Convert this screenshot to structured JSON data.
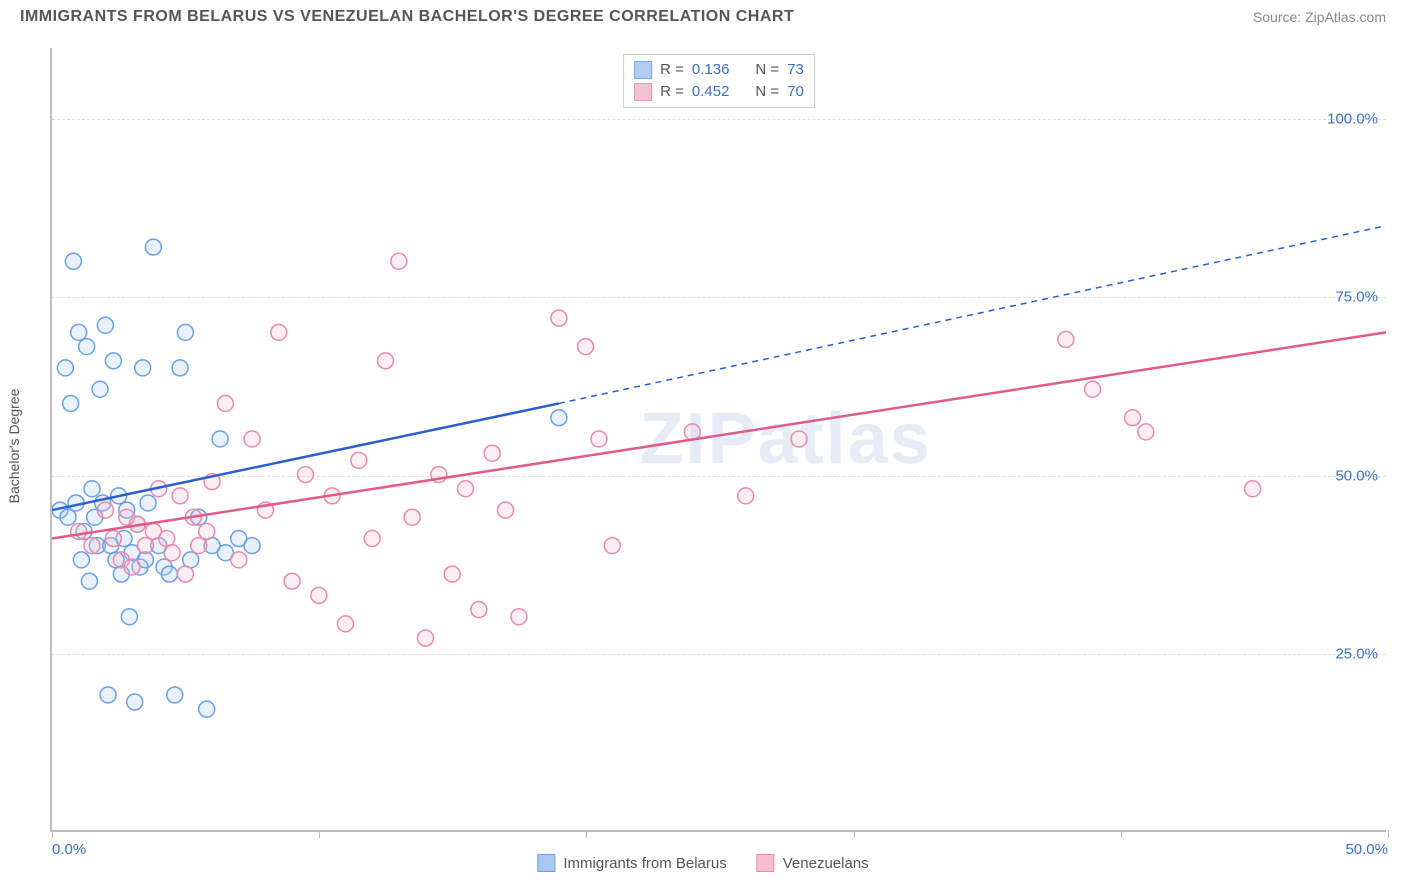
{
  "title": "IMMIGRANTS FROM BELARUS VS VENEZUELAN BACHELOR'S DEGREE CORRELATION CHART",
  "source": "Source: ZipAtlas.com",
  "watermark": "ZIPatlas",
  "y_axis_label": "Bachelor's Degree",
  "chart": {
    "type": "scatter",
    "xlim": [
      0,
      50
    ],
    "ylim": [
      0,
      110
    ],
    "x_ticks": [
      0,
      10,
      20,
      30,
      40,
      50
    ],
    "x_tick_labels": {
      "0": "0.0%",
      "50": "50.0%"
    },
    "y_gridlines": [
      25,
      50,
      75,
      100
    ],
    "y_tick_labels": {
      "25": "25.0%",
      "50": "50.0%",
      "75": "75.0%",
      "100": "100.0%"
    },
    "background_color": "#ffffff",
    "grid_color": "#dddddd",
    "axis_color": "#bdbdbd",
    "marker_radius": 8,
    "marker_stroke_width": 1.5,
    "marker_fill_opacity": 0.25,
    "series": [
      {
        "name": "Immigrants from Belarus",
        "color_stroke": "#6aa0e8",
        "color_fill": "#a9c8f0",
        "trend": {
          "x1": 0,
          "y1": 45,
          "x2": 19,
          "y2": 60,
          "dash_x2": 50,
          "dash_y2": 85,
          "color": "#2a5fd0",
          "width": 2.5
        },
        "stats": {
          "R": "0.136",
          "N": "73"
        },
        "points": [
          [
            0.3,
            45
          ],
          [
            0.5,
            65
          ],
          [
            0.6,
            44
          ],
          [
            0.7,
            60
          ],
          [
            0.8,
            80
          ],
          [
            0.9,
            46
          ],
          [
            1.0,
            70
          ],
          [
            1.1,
            38
          ],
          [
            1.2,
            42
          ],
          [
            1.3,
            68
          ],
          [
            1.4,
            35
          ],
          [
            1.5,
            48
          ],
          [
            1.6,
            44
          ],
          [
            1.7,
            40
          ],
          [
            1.8,
            62
          ],
          [
            1.9,
            46
          ],
          [
            2.0,
            71
          ],
          [
            2.1,
            19
          ],
          [
            2.2,
            40
          ],
          [
            2.3,
            66
          ],
          [
            2.4,
            38
          ],
          [
            2.5,
            47
          ],
          [
            2.6,
            36
          ],
          [
            2.7,
            41
          ],
          [
            2.8,
            45
          ],
          [
            2.9,
            30
          ],
          [
            3.0,
            39
          ],
          [
            3.1,
            18
          ],
          [
            3.2,
            43
          ],
          [
            3.3,
            37
          ],
          [
            3.4,
            65
          ],
          [
            3.5,
            38
          ],
          [
            3.6,
            46
          ],
          [
            3.8,
            82
          ],
          [
            4.0,
            40
          ],
          [
            4.2,
            37
          ],
          [
            4.4,
            36
          ],
          [
            4.6,
            19
          ],
          [
            4.8,
            65
          ],
          [
            5.0,
            70
          ],
          [
            5.2,
            38
          ],
          [
            5.5,
            44
          ],
          [
            5.8,
            17
          ],
          [
            6.0,
            40
          ],
          [
            6.3,
            55
          ],
          [
            6.5,
            39
          ],
          [
            7.0,
            41
          ],
          [
            7.5,
            40
          ],
          [
            19.0,
            58
          ]
        ]
      },
      {
        "name": "Venezuelans",
        "color_stroke": "#e88aa8",
        "color_fill": "#f5bccf",
        "trend": {
          "x1": 0,
          "y1": 41,
          "x2": 50,
          "y2": 70,
          "color": "#e05a8a",
          "width": 2.5
        },
        "stats": {
          "R": "0.452",
          "N": "70"
        },
        "points": [
          [
            1.0,
            42
          ],
          [
            1.5,
            40
          ],
          [
            2.0,
            45
          ],
          [
            2.3,
            41
          ],
          [
            2.6,
            38
          ],
          [
            2.8,
            44
          ],
          [
            3.0,
            37
          ],
          [
            3.2,
            43
          ],
          [
            3.5,
            40
          ],
          [
            3.8,
            42
          ],
          [
            4.0,
            48
          ],
          [
            4.3,
            41
          ],
          [
            4.5,
            39
          ],
          [
            4.8,
            47
          ],
          [
            5.0,
            36
          ],
          [
            5.3,
            44
          ],
          [
            5.5,
            40
          ],
          [
            5.8,
            42
          ],
          [
            6.0,
            49
          ],
          [
            6.5,
            60
          ],
          [
            7.0,
            38
          ],
          [
            7.5,
            55
          ],
          [
            8.0,
            45
          ],
          [
            8.5,
            70
          ],
          [
            9.0,
            35
          ],
          [
            9.5,
            50
          ],
          [
            10.0,
            33
          ],
          [
            10.5,
            47
          ],
          [
            11.0,
            29
          ],
          [
            11.5,
            52
          ],
          [
            12.0,
            41
          ],
          [
            12.5,
            66
          ],
          [
            13.0,
            80
          ],
          [
            13.5,
            44
          ],
          [
            14.0,
            27
          ],
          [
            14.5,
            50
          ],
          [
            15.0,
            36
          ],
          [
            15.5,
            48
          ],
          [
            16.0,
            31
          ],
          [
            16.5,
            53
          ],
          [
            17.0,
            45
          ],
          [
            17.5,
            30
          ],
          [
            19.0,
            72
          ],
          [
            20.0,
            68
          ],
          [
            20.5,
            55
          ],
          [
            21.0,
            40
          ],
          [
            24.0,
            56
          ],
          [
            26.0,
            47
          ],
          [
            28.0,
            55
          ],
          [
            38.0,
            69
          ],
          [
            39.0,
            62
          ],
          [
            40.5,
            58
          ],
          [
            41.0,
            56
          ],
          [
            45.0,
            48
          ]
        ]
      }
    ]
  },
  "legend_labels": {
    "R": "R =",
    "N": "N ="
  }
}
